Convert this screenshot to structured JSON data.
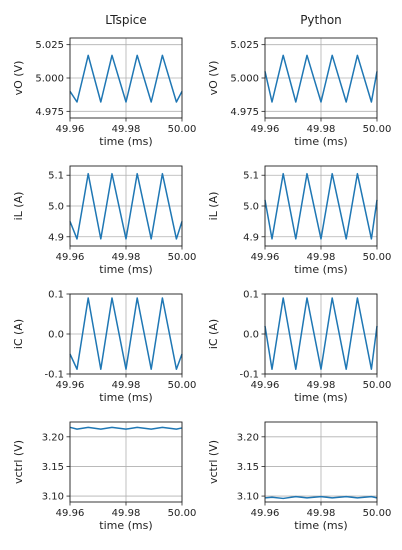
{
  "column_titles": [
    "LTspice",
    "Python"
  ],
  "chart_data": [
    {
      "type": "line",
      "column": "LTspice",
      "xlabel": "time (ms)",
      "ylabel": "vO (V)",
      "xlim": [
        49.96,
        50.0
      ],
      "ylim": [
        4.97,
        5.03
      ],
      "xticks": [
        "49.96",
        "49.98",
        "50.00"
      ],
      "yticks": [
        "4.975",
        "5.000",
        "5.025"
      ],
      "grid": true,
      "x": [
        49.96,
        49.9625,
        49.9665,
        49.971,
        49.975,
        49.98,
        49.984,
        49.989,
        49.993,
        49.998,
        50.0
      ],
      "values": [
        4.99,
        4.982,
        5.017,
        4.982,
        5.017,
        4.982,
        5.017,
        4.982,
        5.017,
        4.982,
        4.99
      ],
      "color": "#1f77b4"
    },
    {
      "type": "line",
      "column": "Python",
      "xlabel": "time (ms)",
      "ylabel": "vO (V)",
      "xlim": [
        49.96,
        50.0
      ],
      "ylim": [
        4.97,
        5.03
      ],
      "xticks": [
        "49.96",
        "49.98",
        "50.00"
      ],
      "yticks": [
        "4.975",
        "5.000",
        "5.025"
      ],
      "grid": true,
      "x": [
        49.96,
        49.9625,
        49.9665,
        49.971,
        49.975,
        49.98,
        49.984,
        49.989,
        49.993,
        49.998,
        50.0
      ],
      "values": [
        5.005,
        4.982,
        5.017,
        4.982,
        5.017,
        4.982,
        5.017,
        4.982,
        5.017,
        4.982,
        5.005
      ],
      "color": "#1f77b4"
    },
    {
      "type": "line",
      "column": "LTspice",
      "xlabel": "time (ms)",
      "ylabel": "iL (A)",
      "xlim": [
        49.96,
        50.0
      ],
      "ylim": [
        4.87,
        5.13
      ],
      "xticks": [
        "49.96",
        "49.98",
        "50.00"
      ],
      "yticks": [
        "4.9",
        "5.0",
        "5.1"
      ],
      "grid": true,
      "x": [
        49.96,
        49.9625,
        49.9665,
        49.971,
        49.975,
        49.98,
        49.984,
        49.989,
        49.993,
        49.998,
        50.0
      ],
      "values": [
        4.95,
        4.893,
        5.105,
        4.893,
        5.105,
        4.893,
        5.105,
        4.893,
        5.105,
        4.893,
        4.95
      ],
      "color": "#1f77b4"
    },
    {
      "type": "line",
      "column": "Python",
      "xlabel": "time (ms)",
      "ylabel": "iL (A)",
      "xlim": [
        49.96,
        50.0
      ],
      "ylim": [
        4.87,
        5.13
      ],
      "xticks": [
        "49.96",
        "49.98",
        "50.00"
      ],
      "yticks": [
        "4.9",
        "5.0",
        "5.1"
      ],
      "grid": true,
      "x": [
        49.96,
        49.9625,
        49.9665,
        49.971,
        49.975,
        49.98,
        49.984,
        49.989,
        49.993,
        49.998,
        50.0
      ],
      "values": [
        5.02,
        4.893,
        5.105,
        4.893,
        5.105,
        4.893,
        5.105,
        4.893,
        5.105,
        4.893,
        5.02
      ],
      "color": "#1f77b4"
    },
    {
      "type": "line",
      "column": "LTspice",
      "xlabel": "time (ms)",
      "ylabel": "iC (A)",
      "xlim": [
        49.96,
        50.0
      ],
      "ylim": [
        -0.1,
        0.1
      ],
      "xticks": [
        "49.96",
        "49.98",
        "50.00"
      ],
      "yticks": [
        "-0.1",
        "0.0",
        "0.1"
      ],
      "grid": true,
      "x": [
        49.96,
        49.9625,
        49.9665,
        49.971,
        49.975,
        49.98,
        49.984,
        49.989,
        49.993,
        49.998,
        50.0
      ],
      "values": [
        -0.05,
        -0.088,
        0.09,
        -0.088,
        0.09,
        -0.088,
        0.09,
        -0.088,
        0.09,
        -0.088,
        -0.05
      ],
      "color": "#1f77b4"
    },
    {
      "type": "line",
      "column": "Python",
      "xlabel": "time (ms)",
      "ylabel": "iC (A)",
      "xlim": [
        49.96,
        50.0
      ],
      "ylim": [
        -0.1,
        0.1
      ],
      "xticks": [
        "49.96",
        "49.98",
        "50.00"
      ],
      "yticks": [
        "-0.1",
        "0.0",
        "0.1"
      ],
      "grid": true,
      "x": [
        49.96,
        49.9625,
        49.9665,
        49.971,
        49.975,
        49.98,
        49.984,
        49.989,
        49.993,
        49.998,
        50.0
      ],
      "values": [
        0.02,
        -0.088,
        0.09,
        -0.088,
        0.09,
        -0.088,
        0.09,
        -0.088,
        0.09,
        -0.088,
        0.02
      ],
      "color": "#1f77b4"
    },
    {
      "type": "line",
      "column": "LTspice",
      "xlabel": "time (ms)",
      "ylabel": "vctrl (V)",
      "xlim": [
        49.96,
        50.0
      ],
      "ylim": [
        3.09,
        3.225
      ],
      "xticks": [
        "49.96",
        "49.98",
        "50.00"
      ],
      "yticks": [
        "3.10",
        "3.15",
        "3.20"
      ],
      "grid": true,
      "x": [
        49.96,
        49.9625,
        49.9665,
        49.971,
        49.975,
        49.98,
        49.984,
        49.989,
        49.993,
        49.998,
        50.0
      ],
      "values": [
        3.216,
        3.213,
        3.216,
        3.213,
        3.216,
        3.213,
        3.216,
        3.213,
        3.216,
        3.213,
        3.215
      ],
      "color": "#1f77b4"
    },
    {
      "type": "line",
      "column": "Python",
      "xlabel": "time (ms)",
      "ylabel": "vctrl (V)",
      "xlim": [
        49.96,
        50.0
      ],
      "ylim": [
        3.09,
        3.225
      ],
      "xticks": [
        "49.96",
        "49.98",
        "50.00"
      ],
      "yticks": [
        "3.10",
        "3.15",
        "3.20"
      ],
      "grid": true,
      "x": [
        49.96,
        49.9625,
        49.9665,
        49.971,
        49.975,
        49.98,
        49.984,
        49.989,
        49.993,
        49.998,
        50.0
      ],
      "values": [
        3.097,
        3.098,
        3.096,
        3.099,
        3.097,
        3.099,
        3.097,
        3.099,
        3.097,
        3.099,
        3.097
      ],
      "color": "#1f77b4"
    }
  ]
}
